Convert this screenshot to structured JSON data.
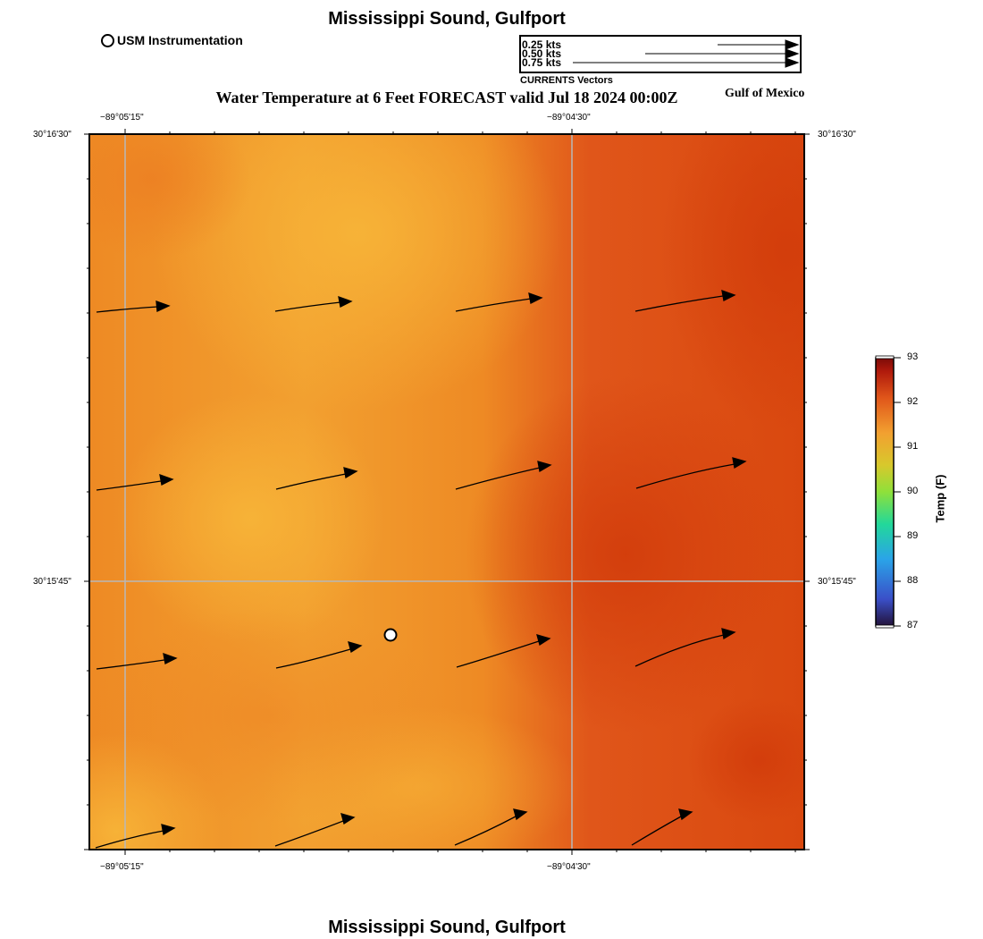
{
  "header": {
    "title": "Mississippi Sound, Gulfport",
    "subtitle": "Water Temperature at 6 Feet FORECAST valid Jul 18 2024 00:00Z",
    "region_label": "Gulf of Mexico"
  },
  "footer": {
    "title": "Mississippi Sound, Gulfport"
  },
  "station_legend": {
    "label": "USM Instrumentation"
  },
  "vector_legend": {
    "entries": [
      {
        "label": "0.25 kts",
        "speed": 0.25
      },
      {
        "label": "0.50 kts",
        "speed": 0.5
      },
      {
        "label": "0.75 kts",
        "speed": 0.75
      }
    ],
    "caption": "CURRENTS Vectors"
  },
  "axes": {
    "top_ticks": [
      "−89°05'15\"",
      "−89°04'30\""
    ],
    "bottom_ticks": [
      "−89°05'15\"",
      "−89°04'30\""
    ],
    "left_ticks": [
      "30°16'30\"",
      "30°15'45\""
    ],
    "right_ticks": [
      "30°16'30\"",
      "30°15'45\""
    ]
  },
  "colorbar": {
    "title": "Temp (F)",
    "ticks": [
      "93",
      "92",
      "91",
      "90",
      "89",
      "88",
      "87"
    ],
    "min": 87,
    "max": 93
  },
  "colors": {
    "warm_light": "#f6b034",
    "warm_mid": "#ec7d22",
    "warm_dark": "#d6400c"
  }
}
